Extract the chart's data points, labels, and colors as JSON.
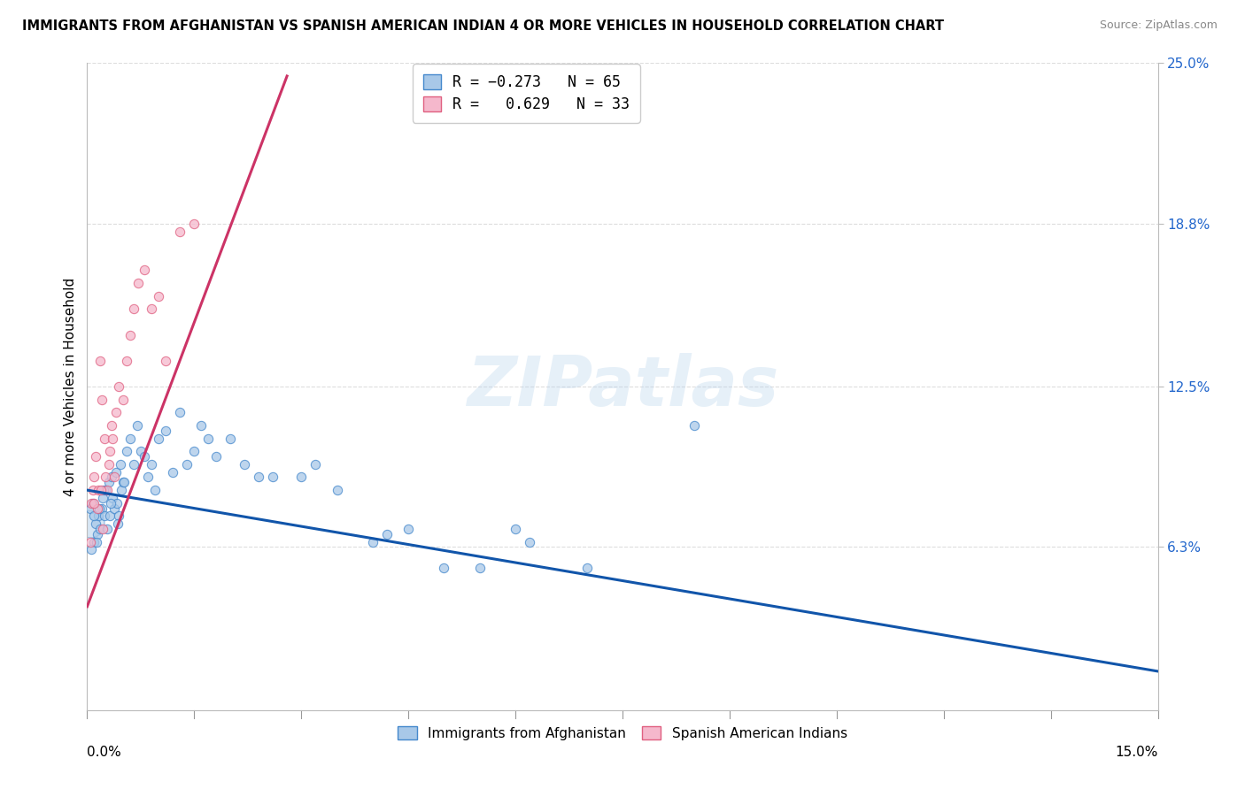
{
  "title": "IMMIGRANTS FROM AFGHANISTAN VS SPANISH AMERICAN INDIAN 4 OR MORE VEHICLES IN HOUSEHOLD CORRELATION CHART",
  "source": "Source: ZipAtlas.com",
  "ylabel": "4 or more Vehicles in Household",
  "right_yticks": [
    6.3,
    12.5,
    18.8,
    25.0
  ],
  "right_ytick_labels": [
    "6.3%",
    "12.5%",
    "18.8%",
    "25.0%"
  ],
  "legend_blue_label": "Immigrants from Afghanistan",
  "legend_pink_label": "Spanish American Indians",
  "blue_color": "#a8c8e8",
  "pink_color": "#f5b8cc",
  "blue_edge_color": "#4488cc",
  "pink_edge_color": "#e06080",
  "blue_line_color": "#1155aa",
  "pink_line_color": "#cc3366",
  "background_color": "#ffffff",
  "grid_color": "#dddddd",
  "watermark_text": "ZIPatlas",
  "xlim": [
    0.0,
    15.0
  ],
  "ylim": [
    0.0,
    25.0
  ],
  "blue_x": [
    0.05,
    0.08,
    0.1,
    0.12,
    0.14,
    0.16,
    0.18,
    0.2,
    0.22,
    0.24,
    0.26,
    0.28,
    0.3,
    0.32,
    0.34,
    0.36,
    0.38,
    0.4,
    0.42,
    0.44,
    0.46,
    0.48,
    0.5,
    0.55,
    0.6,
    0.65,
    0.7,
    0.75,
    0.8,
    0.85,
    0.9,
    0.95,
    1.0,
    1.1,
    1.2,
    1.3,
    1.4,
    1.5,
    1.6,
    1.7,
    1.8,
    2.0,
    2.2,
    2.4,
    2.6,
    3.0,
    3.2,
    3.5,
    4.0,
    4.2,
    4.5,
    5.0,
    5.5,
    6.0,
    6.2,
    7.0,
    8.5,
    0.06,
    0.09,
    0.13,
    0.17,
    0.23,
    0.33,
    0.43,
    0.52
  ],
  "blue_y": [
    7.8,
    8.0,
    6.5,
    7.2,
    6.8,
    7.5,
    7.0,
    7.8,
    8.2,
    7.5,
    8.5,
    7.0,
    8.8,
    7.5,
    9.0,
    8.2,
    7.8,
    9.2,
    8.0,
    7.5,
    9.5,
    8.5,
    8.8,
    10.0,
    10.5,
    9.5,
    11.0,
    10.0,
    9.8,
    9.0,
    9.5,
    8.5,
    10.5,
    10.8,
    9.2,
    11.5,
    9.5,
    10.0,
    11.0,
    10.5,
    9.8,
    10.5,
    9.5,
    9.0,
    9.0,
    9.0,
    9.5,
    8.5,
    6.5,
    6.8,
    7.0,
    5.5,
    5.5,
    7.0,
    6.5,
    5.5,
    11.0,
    6.2,
    7.5,
    6.5,
    7.8,
    8.5,
    8.0,
    7.2,
    8.8
  ],
  "pink_x": [
    0.04,
    0.06,
    0.08,
    0.1,
    0.12,
    0.14,
    0.16,
    0.18,
    0.2,
    0.22,
    0.24,
    0.26,
    0.28,
    0.3,
    0.32,
    0.34,
    0.36,
    0.4,
    0.44,
    0.5,
    0.55,
    0.6,
    0.65,
    0.72,
    0.8,
    0.9,
    1.0,
    1.1,
    1.3,
    1.5,
    0.09,
    0.19,
    0.38
  ],
  "pink_y": [
    6.5,
    8.0,
    8.5,
    9.0,
    9.8,
    7.8,
    8.5,
    13.5,
    12.0,
    7.0,
    10.5,
    9.0,
    8.5,
    9.5,
    10.0,
    11.0,
    10.5,
    11.5,
    12.5,
    12.0,
    13.5,
    14.5,
    15.5,
    16.5,
    17.0,
    15.5,
    16.0,
    13.5,
    18.5,
    18.8,
    8.0,
    8.5,
    9.0
  ],
  "big_blue_dot_x": 0.05,
  "big_blue_dot_y": 7.2,
  "big_blue_dot_size": 500,
  "dot_size": 55,
  "blue_line_x0": 0.0,
  "blue_line_y0": 8.5,
  "blue_line_x1": 15.0,
  "blue_line_y1": 1.5,
  "pink_line_x0": 0.0,
  "pink_line_y0": 4.0,
  "pink_line_x1": 2.8,
  "pink_line_y1": 24.5
}
